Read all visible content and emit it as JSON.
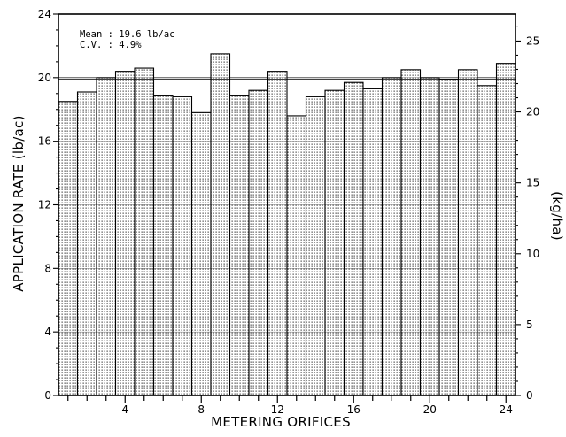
{
  "chart_data": {
    "type": "bar",
    "xlabel": "METERING ORIFICES",
    "ylabel": "APPLICATION RATE (lb/ac)",
    "y2label": "(kg/ha)",
    "xlim": [
      0.5,
      24.5
    ],
    "ylim": [
      0,
      24
    ],
    "y2lim": [
      0,
      26.9
    ],
    "x_ticks": [
      4,
      8,
      12,
      16,
      20,
      24
    ],
    "y_ticks": [
      0,
      4,
      8,
      12,
      16,
      20,
      24
    ],
    "y2_ticks": [
      0,
      5,
      10,
      15,
      20,
      25
    ],
    "grid": true,
    "reference_line": 19.9,
    "annotations": [
      "Mean : 19.6 lb/ac",
      "C.V. : 4.9%"
    ],
    "categories": [
      1,
      2,
      3,
      4,
      5,
      6,
      7,
      8,
      9,
      10,
      11,
      12,
      13,
      14,
      15,
      16,
      17,
      18,
      19,
      20,
      21,
      22,
      23,
      24
    ],
    "values": [
      18.5,
      19.1,
      20.0,
      20.4,
      20.6,
      18.9,
      18.8,
      17.8,
      21.5,
      18.9,
      19.2,
      20.4,
      17.6,
      18.8,
      19.2,
      19.7,
      19.3,
      20.0,
      20.5,
      20.0,
      19.9,
      20.5,
      19.5,
      20.9
    ],
    "bar_fill": "#d9d9d9",
    "bar_edge": "#000000"
  }
}
